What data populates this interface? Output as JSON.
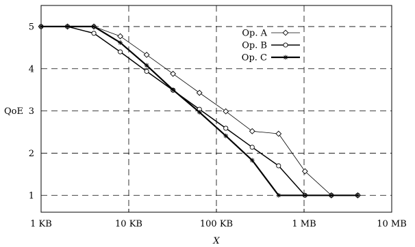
{
  "chart_data": {
    "type": "line",
    "x_scale": "log",
    "x_ticks": [
      {
        "value": 1,
        "label": "1 KB"
      },
      {
        "value": 10,
        "label": "10 KB"
      },
      {
        "value": 100,
        "label": "100 KB"
      },
      {
        "value": 1000,
        "label": "1 MB"
      },
      {
        "value": 10000,
        "label": "10 MB"
      }
    ],
    "y_ticks": [
      1,
      2,
      3,
      4,
      5
    ],
    "xlim": [
      1,
      10000
    ],
    "ylim": [
      0.6,
      5.5
    ],
    "xlabel": "X",
    "ylabel": "QoE",
    "grid": true,
    "legend_position": "top-right",
    "series": [
      {
        "name": "Op. A",
        "marker": "diamond",
        "line_weight": "thin",
        "points": [
          [
            1,
            5
          ],
          [
            2,
            5
          ],
          [
            4,
            5
          ],
          [
            8,
            4.77
          ],
          [
            16,
            4.33
          ],
          [
            32,
            3.88
          ],
          [
            64,
            3.43
          ],
          [
            128,
            2.99
          ],
          [
            256,
            2.52
          ],
          [
            512,
            2.46
          ],
          [
            1024,
            1.57
          ],
          [
            2048,
            1.0
          ],
          [
            4096,
            1.0
          ]
        ]
      },
      {
        "name": "Op. B",
        "marker": "circle",
        "line_weight": "medium",
        "points": [
          [
            1,
            5
          ],
          [
            2,
            5
          ],
          [
            4,
            4.84
          ],
          [
            8,
            4.4
          ],
          [
            16,
            3.94
          ],
          [
            32,
            3.49
          ],
          [
            64,
            3.04
          ],
          [
            128,
            2.59
          ],
          [
            256,
            2.14
          ],
          [
            512,
            1.7
          ],
          [
            1024,
            1.0
          ],
          [
            2048,
            1.0
          ],
          [
            4096,
            1.0
          ]
        ]
      },
      {
        "name": "Op. C",
        "marker": "star",
        "line_weight": "thick",
        "points": [
          [
            1,
            5
          ],
          [
            2,
            5
          ],
          [
            4,
            5
          ],
          [
            8,
            4.62
          ],
          [
            16,
            4.08
          ],
          [
            32,
            3.5
          ],
          [
            64,
            2.97
          ],
          [
            128,
            2.41
          ],
          [
            256,
            1.83
          ],
          [
            512,
            1.0
          ],
          [
            1024,
            1.0
          ],
          [
            2048,
            1.0
          ],
          [
            4096,
            1.0
          ]
        ]
      }
    ]
  }
}
